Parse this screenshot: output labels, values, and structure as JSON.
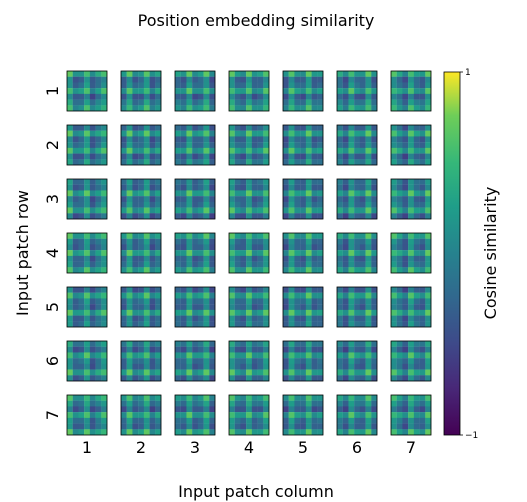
{
  "chart_data": {
    "type": "heatmap",
    "title": "Position embedding similarity",
    "xlabel": "Input patch column",
    "ylabel": "Input patch row",
    "rows": 7,
    "cols": 7,
    "x_ticks": [
      "1",
      "2",
      "3",
      "4",
      "5",
      "6",
      "7"
    ],
    "y_ticks": [
      "1",
      "2",
      "3",
      "4",
      "5",
      "6",
      "7"
    ],
    "cell_resolution": 7,
    "colorbar": {
      "label": "Cosine similarity",
      "min_label": "−1",
      "max_label": "1",
      "range": [
        -1,
        1
      ],
      "colormap": "viridis"
    },
    "colors": {
      "viridis_low": "#440154",
      "viridis_mid": "#21918c",
      "viridis_high": "#fde725"
    }
  }
}
